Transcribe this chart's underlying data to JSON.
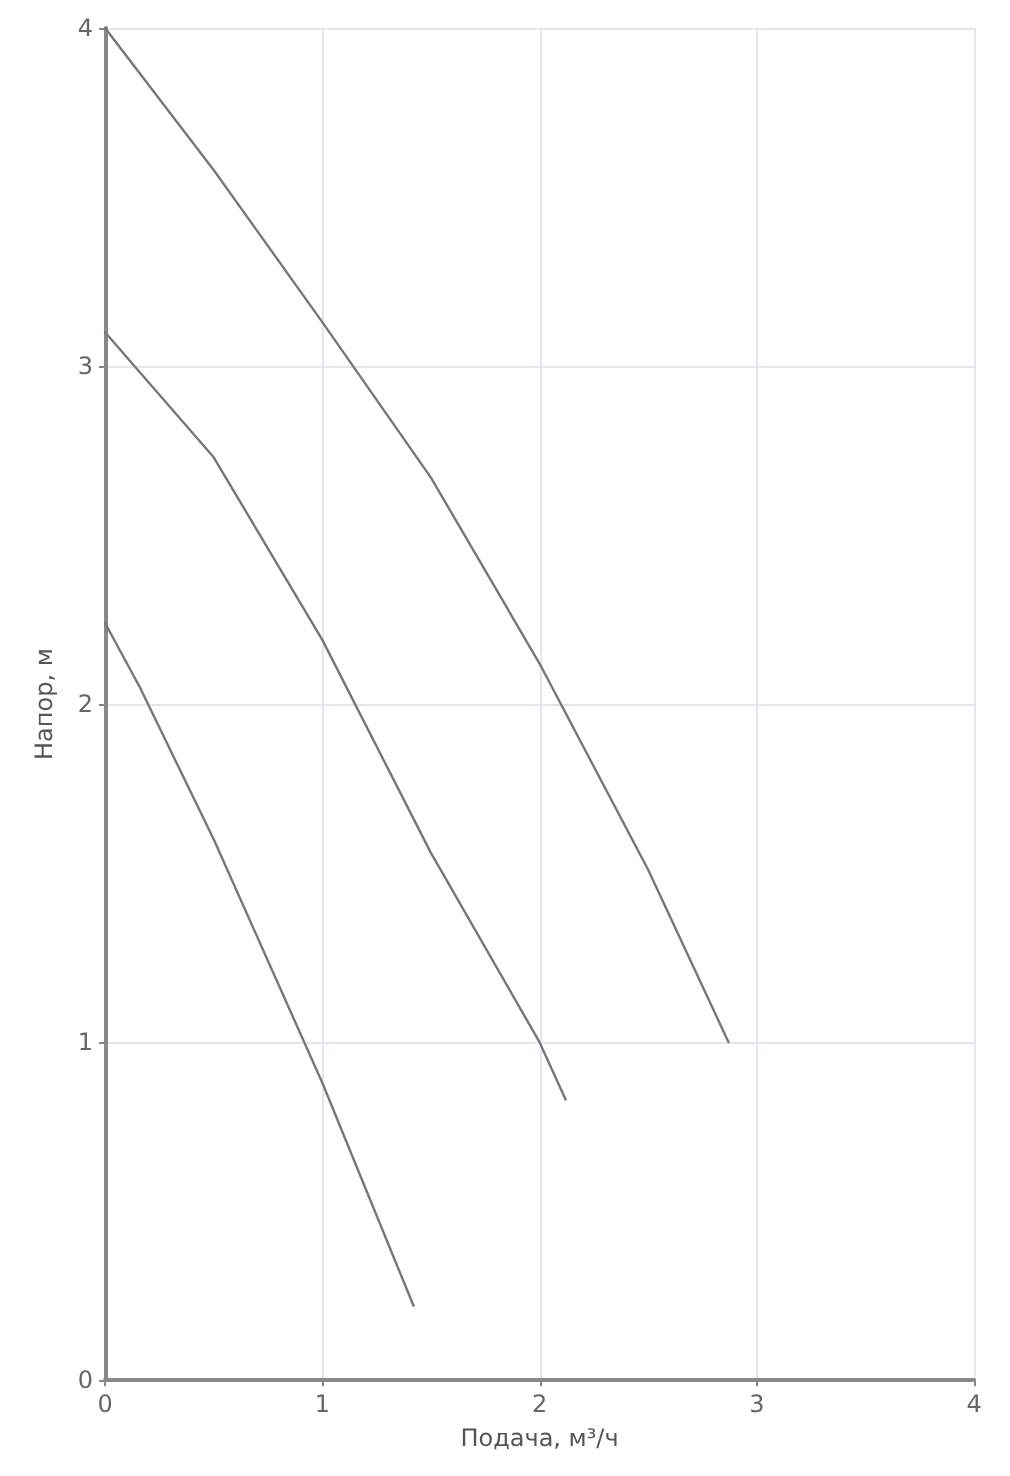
{
  "chart_data": {
    "type": "line",
    "xlabel": "Подача, м³/ч",
    "ylabel": "Напор, м",
    "xlim": [
      0,
      4
    ],
    "xticks": [
      0,
      1,
      2,
      3,
      4
    ],
    "ylim": [
      0,
      4
    ],
    "yticks": [
      0,
      1,
      2,
      3,
      4
    ],
    "grid": true,
    "marker": "none",
    "line_style": "solid",
    "series": [
      {
        "color": "#777777",
        "x": [
          0,
          0.5,
          1,
          1.5,
          2,
          2.5,
          2.87
        ],
        "values": [
          4,
          3.58,
          3.13,
          2.67,
          2.12,
          1.51,
          1.0
        ]
      },
      {
        "color": "#777777",
        "x": [
          0,
          0.5,
          1,
          1.5,
          2,
          2.12
        ],
        "values": [
          3.1,
          2.73,
          2.19,
          1.56,
          1.0,
          0.83
        ]
      },
      {
        "color": "#777777",
        "x": [
          0,
          0.16,
          0.5,
          1,
          1.42
        ],
        "values": [
          2.24,
          2.05,
          1.6,
          0.88,
          0.22
        ]
      }
    ]
  }
}
